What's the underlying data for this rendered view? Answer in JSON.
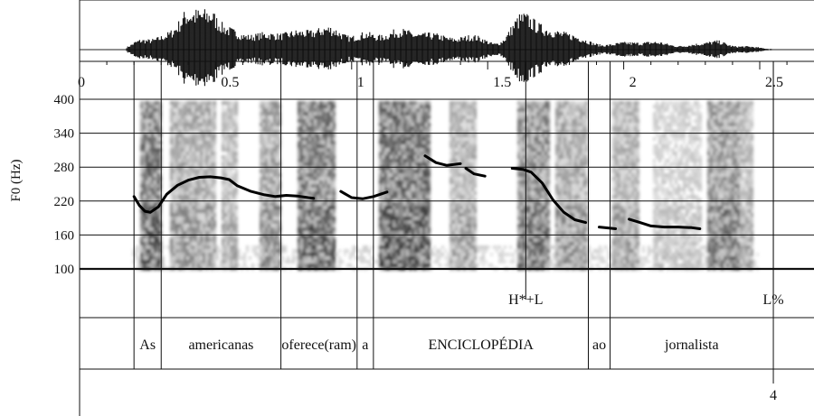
{
  "chart_data": {
    "type": "line",
    "title": "",
    "xlabel": "",
    "ylabel": "F0 (Hz)",
    "xlim": [
      0,
      2.65
    ],
    "ylim": [
      100,
      400
    ],
    "x_ticks": [
      "0",
      "0.5",
      "1",
      "1.5",
      "2",
      "2.5"
    ],
    "x_tick_values": [
      0,
      0.5,
      1,
      1.5,
      2,
      2.5
    ],
    "y_ticks": [
      "100",
      "160",
      "220",
      "280",
      "340",
      "400"
    ],
    "y_tick_values": [
      100,
      160,
      220,
      280,
      340,
      400
    ],
    "grid": true,
    "series": [
      {
        "segments": [
          [
            [
              0.2,
              228
            ],
            [
              0.22,
              212
            ],
            [
              0.24,
              202
            ],
            [
              0.26,
              200
            ],
            [
              0.29,
              210
            ],
            [
              0.32,
              232
            ],
            [
              0.36,
              248
            ],
            [
              0.4,
              257
            ],
            [
              0.44,
              262
            ],
            [
              0.48,
              263
            ],
            [
              0.52,
              261
            ],
            [
              0.55,
              258
            ],
            [
              0.58,
              247
            ],
            [
              0.63,
              237
            ],
            [
              0.68,
              231
            ],
            [
              0.72,
              228
            ],
            [
              0.76,
              230
            ],
            [
              0.8,
              229
            ],
            [
              0.84,
              226
            ],
            [
              0.86,
              225
            ]
          ],
          [
            [
              0.96,
              237
            ],
            [
              1.0,
              226
            ],
            [
              1.04,
              224
            ],
            [
              1.08,
              228
            ],
            [
              1.13,
              236
            ]
          ],
          [
            [
              1.27,
              300
            ],
            [
              1.31,
              288
            ],
            [
              1.35,
              283
            ],
            [
              1.4,
              286
            ]
          ],
          [
            [
              1.42,
              278
            ],
            [
              1.45,
              268
            ],
            [
              1.49,
              264
            ]
          ],
          [
            [
              1.59,
              278
            ],
            [
              1.63,
              276
            ],
            [
              1.66,
              271
            ],
            [
              1.7,
              252
            ],
            [
              1.74,
              222
            ],
            [
              1.78,
              200
            ],
            [
              1.82,
              187
            ],
            [
              1.86,
              182
            ]
          ],
          [
            [
              1.91,
              174
            ],
            [
              1.95,
              172
            ],
            [
              1.97,
              171
            ]
          ],
          [
            [
              2.02,
              188
            ],
            [
              2.06,
              182
            ],
            [
              2.1,
              176
            ],
            [
              2.15,
              174
            ],
            [
              2.2,
              174
            ],
            [
              2.25,
              173
            ],
            [
              2.28,
              171
            ]
          ]
        ]
      }
    ],
    "tones": [
      {
        "label": "H*+L",
        "x": 1.64
      },
      {
        "label": "L%",
        "x": 2.55
      }
    ],
    "words": [
      {
        "label": "As",
        "start": 0.2,
        "end": 0.3
      },
      {
        "label": "americanas",
        "start": 0.3,
        "end": 0.74
      },
      {
        "label": "oferece(ram)",
        "start": 0.74,
        "end": 1.02
      },
      {
        "label": "a",
        "start": 1.02,
        "end": 1.08
      },
      {
        "label": "ENCICLOPÉDIA",
        "start": 1.08,
        "end": 1.87
      },
      {
        "label": "ao",
        "start": 1.87,
        "end": 1.95
      },
      {
        "label": "jornalista",
        "start": 1.95,
        "end": 2.55
      }
    ],
    "break_indices": [
      {
        "label": "4",
        "x": 2.55
      }
    ]
  }
}
